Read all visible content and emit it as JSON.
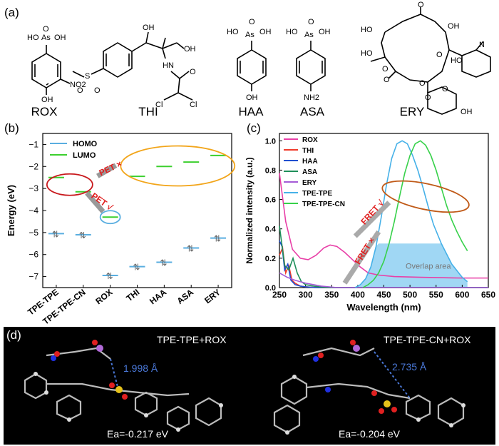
{
  "panel_labels": {
    "a": "(a)",
    "b": "(b)",
    "c": "(c)",
    "d": "(d)"
  },
  "molecules": [
    {
      "name": "ROX",
      "atoms": [
        "HO",
        "As",
        "OH",
        "O",
        "NO2",
        "OH"
      ]
    },
    {
      "name": "THI",
      "atoms": [
        "OH",
        "OH",
        "HN",
        "O",
        "Cl",
        "Cl",
        "S",
        "O",
        "O"
      ]
    },
    {
      "name": "HAA",
      "atoms": [
        "HO",
        "As",
        "OH",
        "O",
        "OH"
      ]
    },
    {
      "name": "ASA",
      "atoms": [
        "HO",
        "As",
        "OH",
        "O",
        "NH2"
      ]
    },
    {
      "name": "ERY",
      "atoms": [
        "O",
        "HO",
        "OH",
        "HO",
        "N",
        "HO",
        "O",
        "O",
        "O",
        "O",
        "O",
        "O",
        "OH"
      ]
    }
  ],
  "chart_data": [
    {
      "type": "scatter",
      "panel": "b",
      "ylabel": "Energy (eV)",
      "ylim": [
        -7.5,
        -0.5
      ],
      "yticks": [
        -7,
        -6,
        -5,
        -4,
        -3,
        -2,
        -1
      ],
      "categories": [
        "TPE-TPE",
        "TPE-TPE-CN",
        "ROX",
        "THI",
        "HAA",
        "ASA",
        "ERY"
      ],
      "series": [
        {
          "name": "HOMO",
          "color": "#5aaee0",
          "values": [
            -5.05,
            -5.1,
            -6.95,
            -6.55,
            -6.35,
            -5.7,
            -5.25
          ]
        },
        {
          "name": "LUMO",
          "color": "#3ccf2e",
          "values": [
            -2.5,
            -3.15,
            -4.3,
            -2.45,
            -2.0,
            -1.8,
            -1.5
          ]
        }
      ],
      "legend_position": "top-left",
      "annotations": [
        "PET ×",
        "PET √"
      ]
    },
    {
      "type": "line",
      "panel": "c",
      "xlabel": "Wavelength (nm)",
      "ylabel": "Normalized intensity (a.u.)",
      "xlim": [
        250,
        650
      ],
      "ylim": [
        0,
        1.05
      ],
      "xticks": [
        250,
        300,
        350,
        400,
        450,
        500,
        550,
        600,
        650
      ],
      "yticks": [
        0.0,
        0.2,
        0.4,
        0.6,
        0.8,
        1.0
      ],
      "legend_position": "top-left",
      "annotations": [
        "FRET √",
        "FRET ×",
        "Overlap area"
      ],
      "series": [
        {
          "name": "ROX",
          "color": "#e83fa7",
          "x": [
            250,
            262,
            275,
            290,
            305,
            320,
            335,
            347,
            360,
            375,
            390,
            405,
            420,
            440,
            470,
            520,
            600,
            650
          ],
          "y": [
            0.78,
            0.45,
            0.26,
            0.2,
            0.19,
            0.22,
            0.27,
            0.29,
            0.28,
            0.24,
            0.19,
            0.14,
            0.1,
            0.085,
            0.075,
            0.07,
            0.065,
            0.065
          ]
        },
        {
          "name": "THI",
          "color": "#f03a2a",
          "x": [
            250,
            256,
            262,
            268,
            274,
            280,
            290,
            300,
            320,
            650
          ],
          "y": [
            0.22,
            0.27,
            0.1,
            0.15,
            0.05,
            0.03,
            0.01,
            0.005,
            0.0,
            0.0
          ]
        },
        {
          "name": "HAA",
          "color": "#1f4fd0",
          "x": [
            250,
            255,
            260,
            266,
            272,
            280,
            290,
            300,
            320,
            650
          ],
          "y": [
            0.32,
            0.28,
            0.12,
            0.16,
            0.05,
            0.02,
            0.01,
            0.005,
            0.0,
            0.0
          ]
        },
        {
          "name": "ASA",
          "color": "#1f8f5a",
          "x": [
            250,
            260,
            268,
            276,
            284,
            292,
            300,
            315,
            340,
            650
          ],
          "y": [
            0.42,
            0.15,
            0.12,
            0.2,
            0.1,
            0.04,
            0.02,
            0.01,
            0.0,
            0.0
          ]
        },
        {
          "name": "ERY",
          "color": "#a55bd6",
          "x": [
            250,
            265,
            280,
            300,
            330,
            360,
            650
          ],
          "y": [
            0.1,
            0.07,
            0.05,
            0.03,
            0.01,
            0.0,
            0.0
          ]
        },
        {
          "name": "TPE-TPE",
          "color": "#46b1e8",
          "x": [
            395,
            405,
            415,
            425,
            435,
            445,
            455,
            465,
            475,
            485,
            495,
            505,
            515,
            525,
            535,
            545,
            560,
            580,
            600,
            610
          ],
          "y": [
            0.0,
            0.02,
            0.06,
            0.14,
            0.28,
            0.48,
            0.7,
            0.88,
            0.98,
            1.0,
            0.98,
            0.9,
            0.8,
            0.68,
            0.55,
            0.43,
            0.3,
            0.16,
            0.07,
            0.04
          ]
        },
        {
          "name": "TPE-TPE-CN",
          "color": "#37d14a",
          "x": [
            410,
            420,
            430,
            440,
            450,
            460,
            470,
            480,
            490,
            500,
            510,
            520,
            530,
            540,
            550,
            560,
            570,
            580,
            590,
            600,
            610
          ],
          "y": [
            0.0,
            0.02,
            0.05,
            0.1,
            0.18,
            0.3,
            0.45,
            0.62,
            0.78,
            0.9,
            0.98,
            1.0,
            0.97,
            0.9,
            0.8,
            0.68,
            0.56,
            0.46,
            0.38,
            0.31,
            0.25
          ]
        }
      ]
    }
  ],
  "panel_d": {
    "left_title": "TPE-TPE+ROX",
    "right_title": "TPE-TPE-CN+ROX",
    "left_distance": "1.998 Å",
    "right_distance": "2.735 Å",
    "left_energy": "Ea=-0.217 eV",
    "right_energy": "Ea=-0.204 eV"
  }
}
